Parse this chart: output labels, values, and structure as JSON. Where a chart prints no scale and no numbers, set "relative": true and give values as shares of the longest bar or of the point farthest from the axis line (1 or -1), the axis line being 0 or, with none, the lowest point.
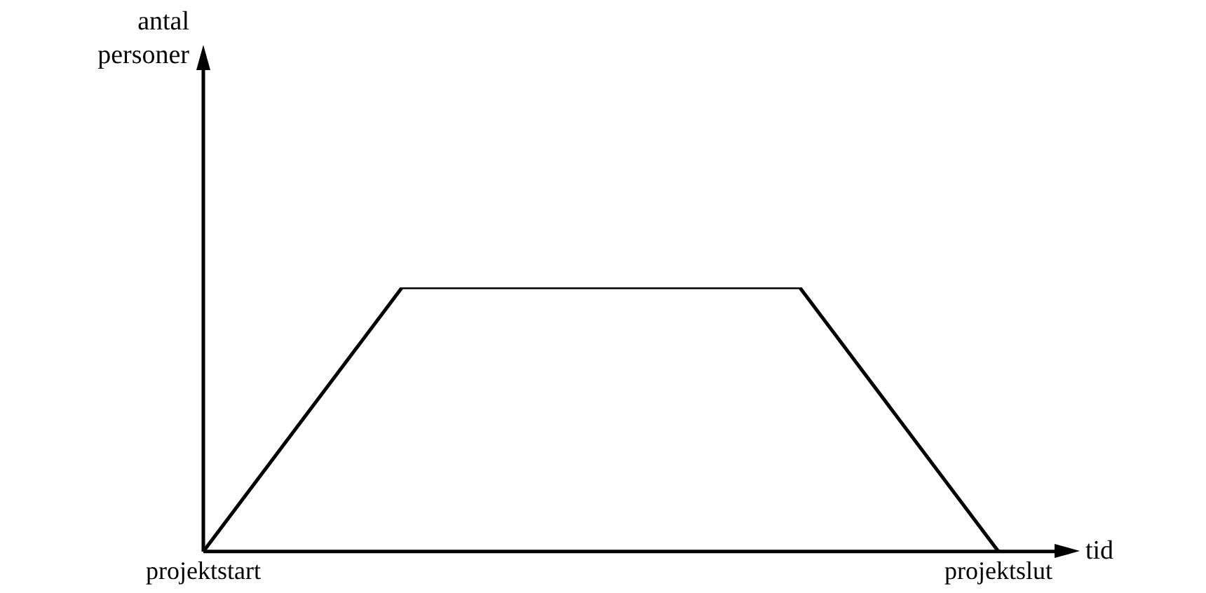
{
  "chart_data": {
    "type": "line",
    "xlabel": "tid",
    "annotations": [
      "antal personer"
    ],
    "categories": [
      "projektstart",
      null,
      null,
      null,
      "projektslut"
    ],
    "relative": true,
    "series": [
      {
        "color": "#000000",
        "values": [
          0,
          1,
          1,
          1,
          0
        ]
      }
    ],
    "marker": "none",
    "grid": false,
    "legend": false,
    "tick_labels": "x"
  }
}
